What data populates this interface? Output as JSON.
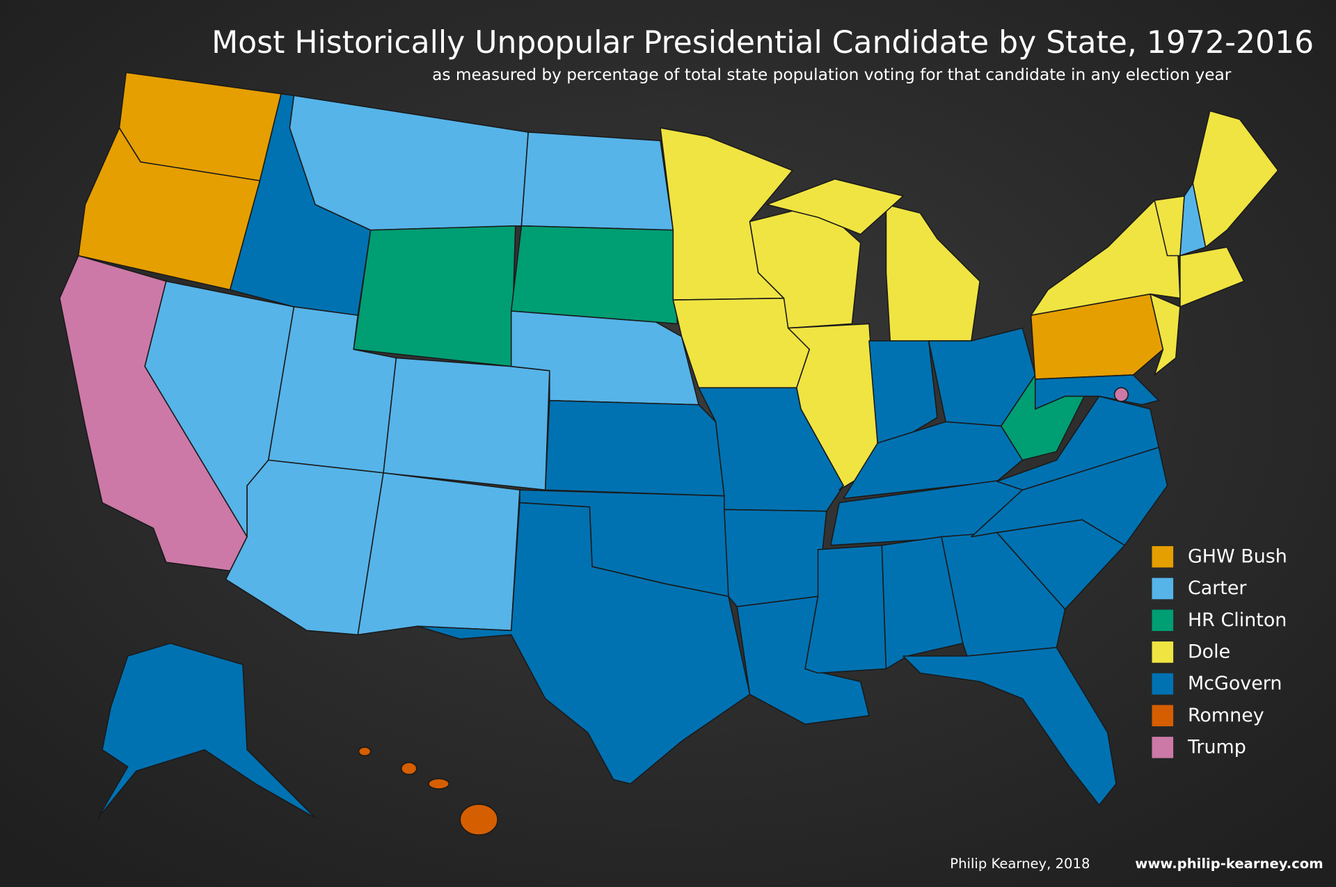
{
  "title": "Most Historically Unpopular Presidential Candidate by State, 1972-2016",
  "subtitle": "as measured by percentage of total state population voting for that candidate in any election year",
  "legend": {
    "items": [
      {
        "label": "GHW Bush",
        "color": "#e69f00"
      },
      {
        "label": "Carter",
        "color": "#56b4e9"
      },
      {
        "label": "HR Clinton",
        "color": "#009e73"
      },
      {
        "label": "Dole",
        "color": "#f0e442"
      },
      {
        "label": "McGovern",
        "color": "#0072b2"
      },
      {
        "label": "Romney",
        "color": "#d55e00"
      },
      {
        "label": "Trump",
        "color": "#cc79a7"
      }
    ]
  },
  "credit": "Philip Kearney, 2018",
  "website": "www.philip-kearney.com"
}
